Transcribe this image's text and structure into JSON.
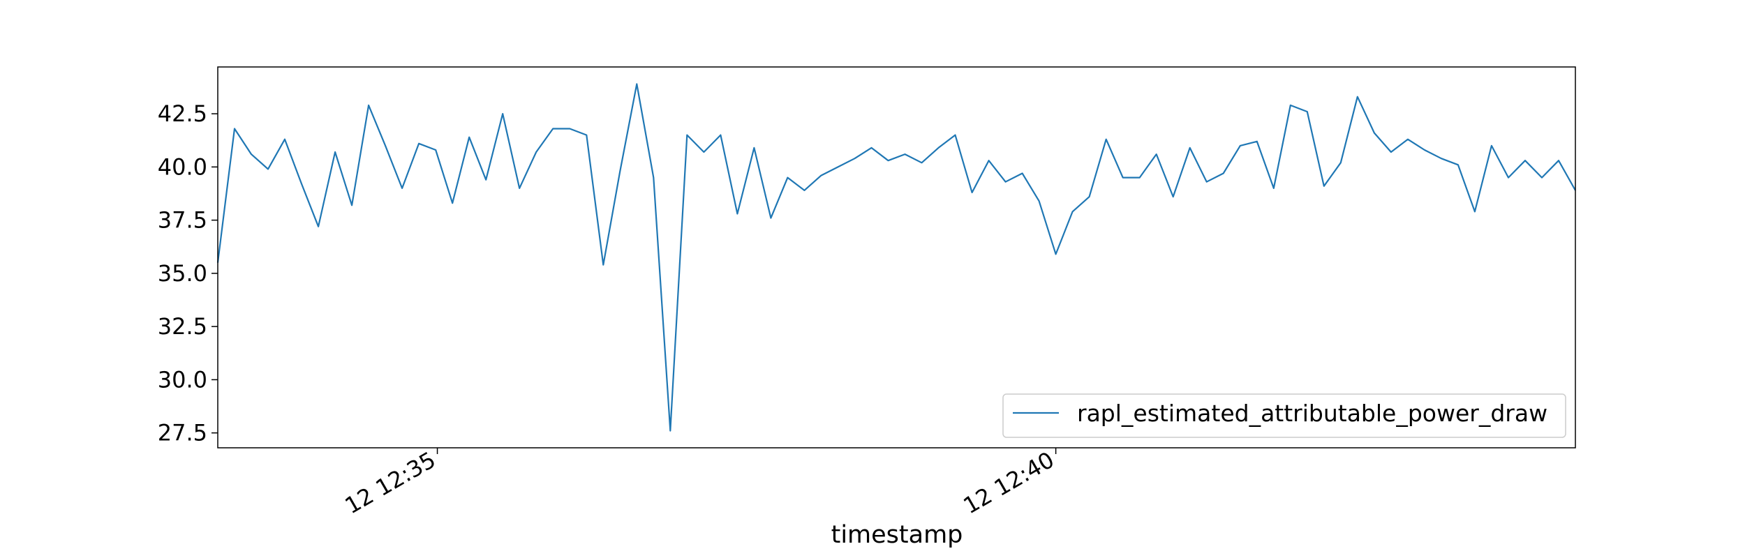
{
  "chart_data": {
    "type": "line",
    "xlabel": "timestamp",
    "ylabel": "",
    "title": "",
    "x_tick_labels": [
      "12 12:35",
      "12 12:40"
    ],
    "y_ticks": [
      27.5,
      30.0,
      32.5,
      35.0,
      37.5,
      40.0,
      42.5
    ],
    "y_tick_labels": [
      "27.5",
      "30.0",
      "32.5",
      "35.0",
      "37.5",
      "40.0",
      "42.5"
    ],
    "ylim": [
      26.8,
      44.7
    ],
    "xlim_index": [
      0,
      81
    ],
    "x_tick_index": [
      13.1,
      50.0
    ],
    "grid": false,
    "legend_position": "bottom-right",
    "series": [
      {
        "name": "rapl_estimated_attributable_power_draw",
        "color": "#1f77b4",
        "values": [
          35.5,
          41.8,
          40.6,
          39.9,
          41.3,
          39.2,
          37.2,
          40.7,
          38.2,
          42.9,
          41.0,
          39.0,
          41.1,
          40.8,
          38.3,
          41.4,
          39.4,
          42.5,
          39.0,
          40.7,
          41.8,
          41.8,
          41.5,
          35.4,
          39.8,
          43.9,
          39.5,
          27.6,
          41.5,
          40.7,
          41.5,
          37.8,
          40.9,
          37.6,
          39.5,
          38.9,
          39.6,
          40.0,
          40.4,
          40.9,
          40.3,
          40.6,
          40.2,
          40.9,
          41.5,
          38.8,
          40.3,
          39.3,
          39.7,
          38.4,
          35.9,
          37.9,
          38.6,
          41.3,
          39.5,
          39.5,
          40.6,
          38.6,
          40.9,
          39.3,
          39.7,
          41.0,
          41.2,
          39.0,
          42.9,
          42.6,
          39.1,
          40.2,
          43.3,
          41.6,
          40.7,
          41.3,
          40.8,
          40.4,
          40.1,
          37.9,
          41.0,
          39.5,
          40.3,
          39.5,
          40.3,
          38.9
        ]
      }
    ]
  }
}
